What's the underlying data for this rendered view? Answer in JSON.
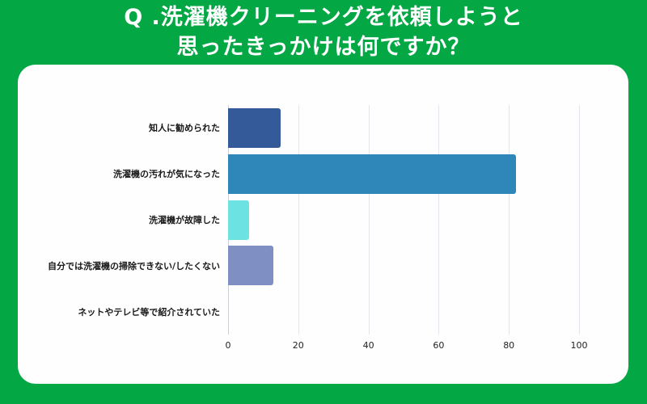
{
  "title": {
    "line1": "Q .洗濯機クリーニングを依頼しようと",
    "line2": "思ったきっかけは何ですか？"
  },
  "colors": {
    "background": "#03a744",
    "card": "#fefefe"
  },
  "chart_data": {
    "type": "bar",
    "orientation": "horizontal",
    "title": "Q .洗濯機クリーニングを依頼しようと思ったきっかけは何ですか？",
    "xlabel": "",
    "ylabel": "",
    "xlim": [
      0,
      100
    ],
    "x_ticks": [
      "0",
      "20",
      "40",
      "60",
      "80",
      "100"
    ],
    "grid": true,
    "legend": "none",
    "categories": [
      "知人に勧められた",
      "洗濯機の汚れが気になった",
      "洗濯機が故障した",
      "自分では洗濯機の掃除できない/したくない",
      "ネットやテレビ等で紹介されていた"
    ],
    "values": [
      15,
      82,
      6,
      13,
      0
    ],
    "bar_colors": [
      "#345a9a",
      "#2f87b9",
      "#6de2e2",
      "#7f8fc4",
      "#345a9a"
    ]
  }
}
